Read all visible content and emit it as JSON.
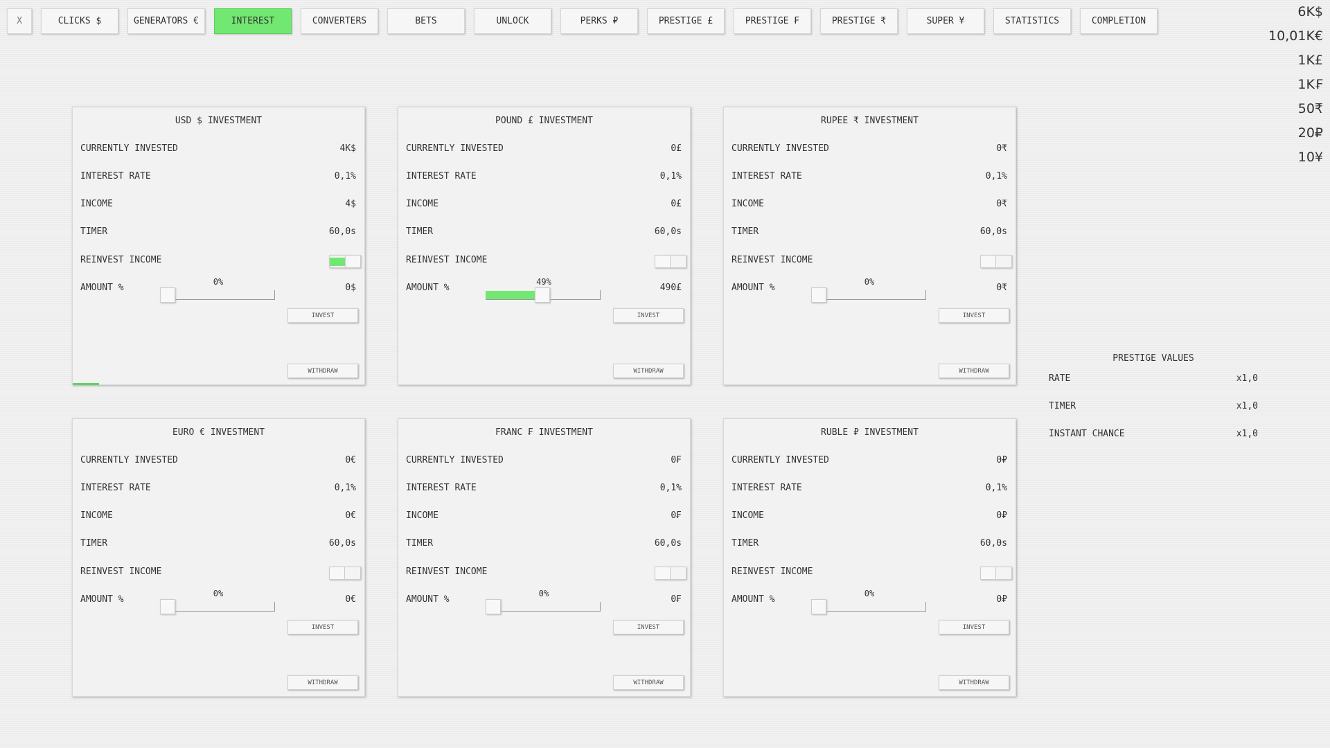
{
  "nav": [
    {
      "label": "X"
    },
    {
      "label": "CLICKS $"
    },
    {
      "label": "GENERATORS €"
    },
    {
      "label": "INTEREST",
      "active": true
    },
    {
      "label": "CONVERTERS"
    },
    {
      "label": "BETS"
    },
    {
      "label": "UNLOCK"
    },
    {
      "label": "PERKS ₽"
    },
    {
      "label": "PRESTIGE £"
    },
    {
      "label": "PRESTIGE ₣"
    },
    {
      "label": "PRESTIGE ₹"
    },
    {
      "label": "SUPER ¥"
    },
    {
      "label": "STATISTICS"
    },
    {
      "label": "COMPLETION"
    }
  ],
  "currencies": [
    "6K$",
    "10,01K€",
    "1K£",
    "1K₣",
    "50₹",
    "20₽",
    "10¥"
  ],
  "labels": {
    "invested": "CURRENTLY INVESTED",
    "rate": "INTEREST RATE",
    "income": "INCOME",
    "timer": "TIMER",
    "reinvest": "REINVEST INCOME",
    "amount": "AMOUNT %",
    "invest": "INVEST",
    "withdraw": "WITHDRAW"
  },
  "accent": "#72e872",
  "panels": [
    {
      "title": "USD $ INVESTMENT",
      "invested": "4K$",
      "rate": "0,1%",
      "income": "4$",
      "timer": "60,0s",
      "reinvest": true,
      "amount_pct_label": "0%",
      "amount_pct": 0,
      "amount_value": "0$",
      "timer_progress": 0.09
    },
    {
      "title": "POUND £ INVESTMENT",
      "invested": "0£",
      "rate": "0,1%",
      "income": "0£",
      "timer": "60,0s",
      "reinvest": false,
      "amount_pct_label": "49%",
      "amount_pct": 49,
      "amount_value": "490£",
      "timer_progress": 0
    },
    {
      "title": "RUPEE ₹ INVESTMENT",
      "invested": "0₹",
      "rate": "0,1%",
      "income": "0₹",
      "timer": "60,0s",
      "reinvest": false,
      "amount_pct_label": "0%",
      "amount_pct": 0,
      "amount_value": "0₹",
      "timer_progress": 0
    },
    {
      "title": "EURO € INVESTMENT",
      "invested": "0€",
      "rate": "0,1%",
      "income": "0€",
      "timer": "60,0s",
      "reinvest": false,
      "amount_pct_label": "0%",
      "amount_pct": 0,
      "amount_value": "0€",
      "timer_progress": 0
    },
    {
      "title": "FRANC ₣ INVESTMENT",
      "invested": "0₣",
      "rate": "0,1%",
      "income": "0₣",
      "timer": "60,0s",
      "reinvest": false,
      "amount_pct_label": "0%",
      "amount_pct": 0,
      "amount_value": "0₣",
      "timer_progress": 0
    },
    {
      "title": "RUBLE ₽ INVESTMENT",
      "invested": "0₽",
      "rate": "0,1%",
      "income": "0₽",
      "timer": "60,0s",
      "reinvest": false,
      "amount_pct_label": "0%",
      "amount_pct": 0,
      "amount_value": "0₽",
      "timer_progress": 0
    }
  ],
  "prestige": {
    "title": "PRESTIGE VALUES",
    "rows": [
      {
        "label": "RATE",
        "value": "x1,0"
      },
      {
        "label": "TIMER",
        "value": "x1,0"
      },
      {
        "label": "INSTANT CHANCE",
        "value": "x1,0"
      }
    ]
  }
}
